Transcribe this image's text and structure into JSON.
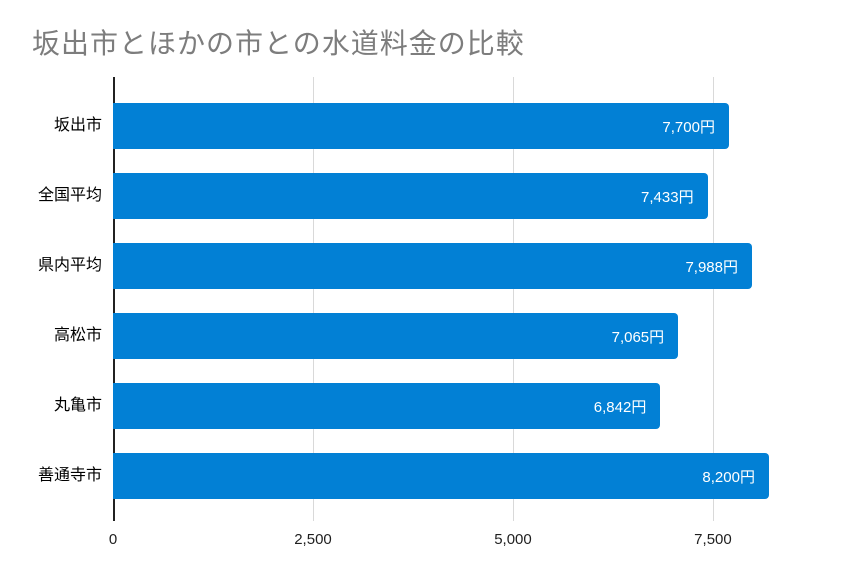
{
  "chart_data": {
    "type": "bar",
    "orientation": "horizontal",
    "title": "坂出市とほかの市との水道料金の比較",
    "categories": [
      "坂出市",
      "全国平均",
      "県内平均",
      "高松市",
      "丸亀市",
      "善通寺市"
    ],
    "values": [
      7700,
      7433,
      7988,
      7065,
      6842,
      8200
    ],
    "value_labels": [
      "7,700円",
      "7,433円",
      "7,988円",
      "7,065円",
      "6,842円",
      "8,200円"
    ],
    "x_ticks": [
      0,
      2500,
      5000,
      7500
    ],
    "x_tick_labels": [
      "0",
      "2,500",
      "5,000",
      "7,500"
    ],
    "xlim": [
      0,
      8838
    ],
    "xlabel": "",
    "ylabel": "",
    "grid": true,
    "legend": "none",
    "colors": {
      "bar": "#0280d5",
      "gridline": "#d9d9d9",
      "axis_line": "#212121",
      "title": "#7d7d7d",
      "bar_value_text": "#ffffff",
      "tick_text": "#1f1f1f",
      "category_text": "#000000"
    }
  }
}
